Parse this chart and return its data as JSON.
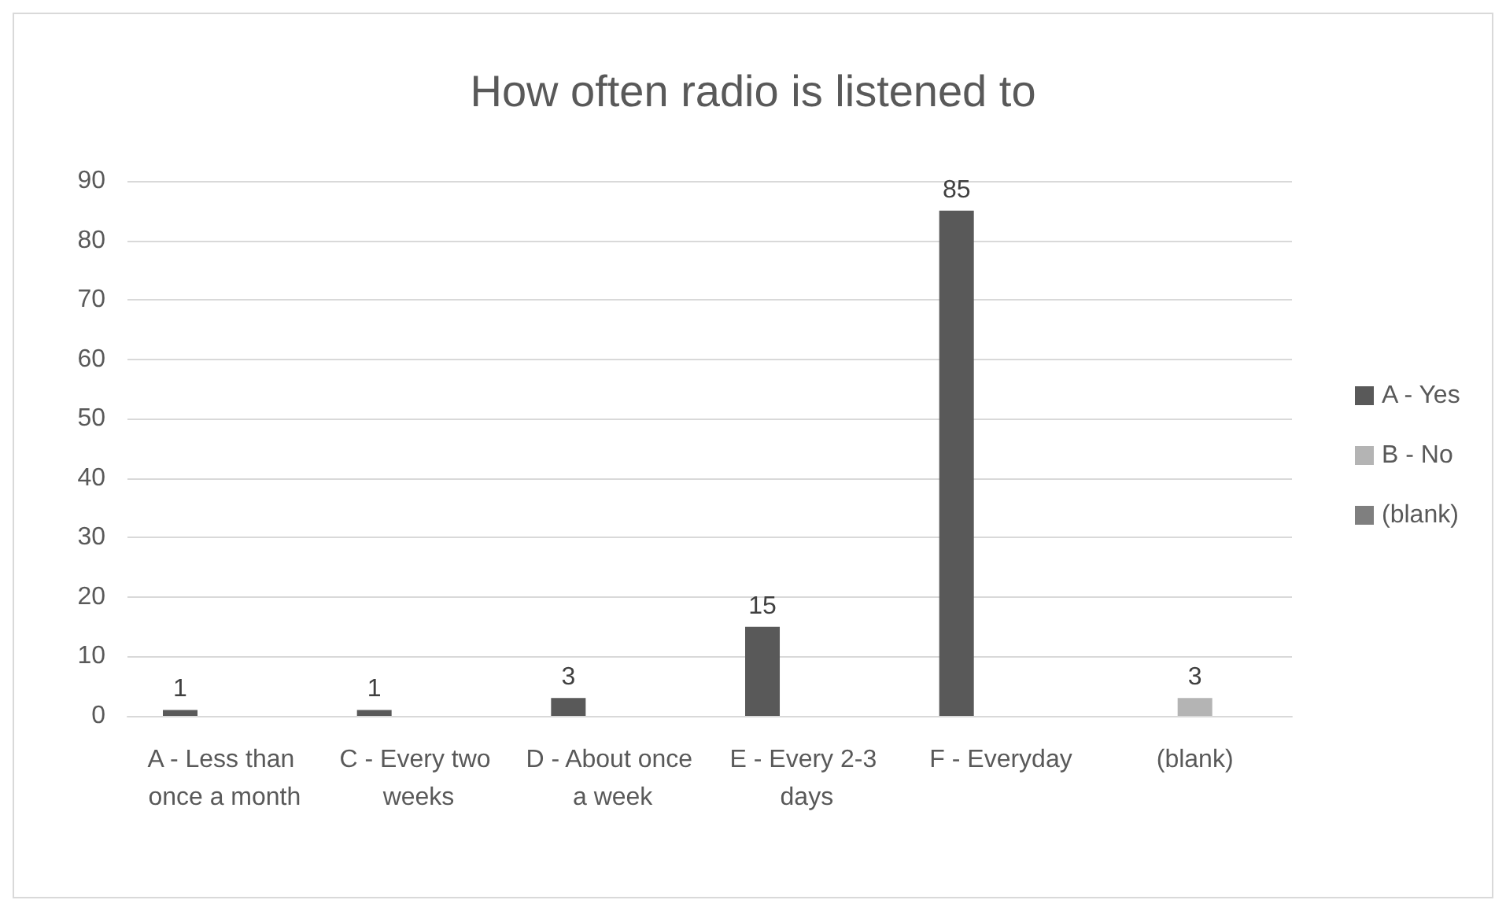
{
  "chart_data": {
    "type": "bar",
    "title": "How often radio is listened to",
    "categories": [
      "A - Less than once a month",
      "C - Every two weeks",
      "D - About once a week",
      "E - Every 2-3 days",
      "F - Everyday",
      "(blank)"
    ],
    "series": [
      {
        "name": "A - Yes",
        "color": "#595959",
        "values": [
          1,
          1,
          3,
          15,
          85,
          null
        ]
      },
      {
        "name": "B - No",
        "color": "#b4b4b4",
        "values": [
          null,
          null,
          null,
          null,
          null,
          3
        ]
      },
      {
        "name": "(blank)",
        "color": "#7f7f7f",
        "values": [
          null,
          null,
          null,
          null,
          null,
          null
        ]
      }
    ],
    "ylim": [
      0,
      90
    ],
    "yticks": [
      0,
      10,
      20,
      30,
      40,
      50,
      60,
      70,
      80,
      90
    ],
    "grid": "y",
    "legend": "right",
    "data_labels": true
  }
}
